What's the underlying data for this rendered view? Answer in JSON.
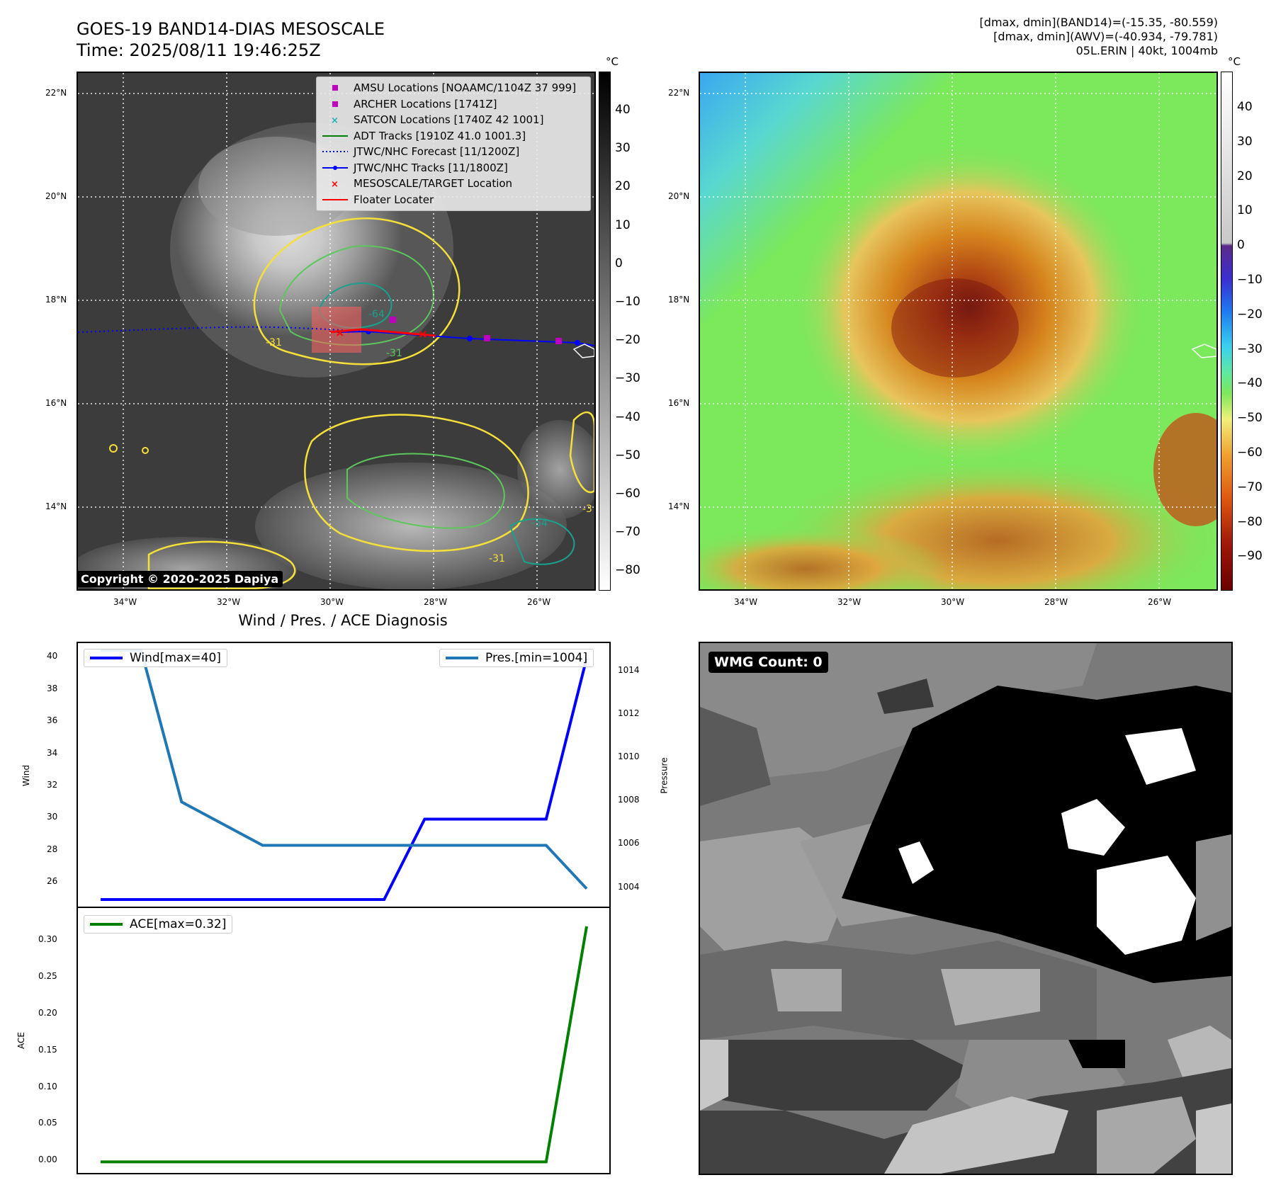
{
  "header": {
    "title_line1": "GOES-19 BAND14-DIAS MESOSCALE",
    "title_line2": "Time: 2025/08/11 19:46:25Z",
    "info_line1": "[dmax, dmin](BAND14)=(-15.35, -80.559)",
    "info_line2": "[dmax, dmin](AWV)=(-40.934, -79.781)",
    "info_line3": "05L.ERIN | 40kt, 1004mb"
  },
  "map": {
    "lat_labels": [
      "22°N",
      "20°N",
      "18°N",
      "16°N",
      "14°N"
    ],
    "lon_labels": [
      "34°W",
      "32°W",
      "30°W",
      "28°W",
      "26°W"
    ],
    "colors": {
      "track": "#0000ff",
      "forecast": "#0000ff",
      "amsu": "#c000c0",
      "target": "#ff0000",
      "contour_yellow": "#f5e03a",
      "contour_green": "#5cc85c",
      "contour_teal": "#1aa08c"
    },
    "contour_labels": [
      "-31",
      "-64",
      "-31",
      "-54",
      "-31",
      "-3"
    ],
    "copyright": "Copyright © 2020-2025 Dapiya"
  },
  "legend": {
    "items": [
      {
        "label": "AMSU Locations [NOAAMC/1104Z 37 999]",
        "symbol": "square",
        "color": "#c000c0"
      },
      {
        "label": "ARCHER Locations [1741Z]",
        "symbol": "square",
        "color": "#c000c0"
      },
      {
        "label": "SATCON Locations [1740Z 42 1001]",
        "symbol": "x",
        "color": "#20b0b0"
      },
      {
        "label": "ADT Tracks [1910Z 41.0 1001.3]",
        "symbol": "line",
        "color": "#008000"
      },
      {
        "label": "JTWC/NHC Forecast [11/1200Z]",
        "symbol": "dotted",
        "color": "#0000ff"
      },
      {
        "label": "JTWC/NHC Tracks [11/1800Z]",
        "symbol": "dotline",
        "color": "#0000ff"
      },
      {
        "label": "MESOSCALE/TARGET Location",
        "symbol": "x",
        "color": "#ff0000"
      },
      {
        "label": "Floater Locater",
        "symbol": "line",
        "color": "#ff0000"
      }
    ]
  },
  "colorbar_left": {
    "unit": "°C",
    "ticks": [
      "40",
      "30",
      "20",
      "10",
      "0",
      "−10",
      "−20",
      "−30",
      "−40",
      "−50",
      "−60",
      "−70",
      "−80"
    ]
  },
  "colorbar_right": {
    "unit": "°C",
    "ticks": [
      "40",
      "30",
      "20",
      "10",
      "0",
      "−10",
      "−20",
      "−30",
      "−40",
      "−50",
      "−60",
      "−70",
      "−80",
      "−90"
    ]
  },
  "wmg": {
    "label": "WMG Count: 0"
  },
  "chart_data": [
    {
      "type": "line",
      "title": "Wind / Pres. / ACE Diagnosis",
      "ylabel": "Wind",
      "y2label": "Pressure",
      "x": [
        0,
        1,
        2,
        3,
        4,
        5,
        6,
        7,
        8,
        9,
        10,
        11,
        12
      ],
      "ylim": [
        25,
        40.5
      ],
      "y2lim": [
        1003.5,
        1015
      ],
      "yticks": [
        "40",
        "38",
        "36",
        "34",
        "32",
        "30",
        "28",
        "26"
      ],
      "y2ticks": [
        "1014",
        "1012",
        "1010",
        "1008",
        "1006",
        "1004"
      ],
      "series": [
        {
          "name": "Wind[max=40]",
          "axis": "left",
          "color": "#0000ff",
          "values": [
            25,
            25,
            25,
            25,
            25,
            25,
            25,
            25,
            30,
            30,
            30,
            30,
            40
          ]
        },
        {
          "name": "Pres.[min=1004]",
          "axis": "right",
          "color": "#1f77b4",
          "values": [
            1015,
            1015,
            1008,
            1007,
            1006,
            1006,
            1006,
            1006,
            1006,
            1006,
            1006,
            1006,
            1004
          ]
        }
      ]
    },
    {
      "type": "line",
      "ylabel": "ACE",
      "x": [
        0,
        1,
        2,
        3,
        4,
        5,
        6,
        7,
        8,
        9,
        10,
        11,
        12
      ],
      "ylim": [
        -0.015,
        0.345
      ],
      "yticks": [
        "0.30",
        "0.25",
        "0.20",
        "0.15",
        "0.10",
        "0.05",
        "0.00"
      ],
      "series": [
        {
          "name": "ACE[max=0.32]",
          "color": "#008000",
          "values": [
            0,
            0,
            0,
            0,
            0,
            0,
            0,
            0,
            0,
            0,
            0,
            0,
            0.32
          ]
        }
      ]
    }
  ]
}
